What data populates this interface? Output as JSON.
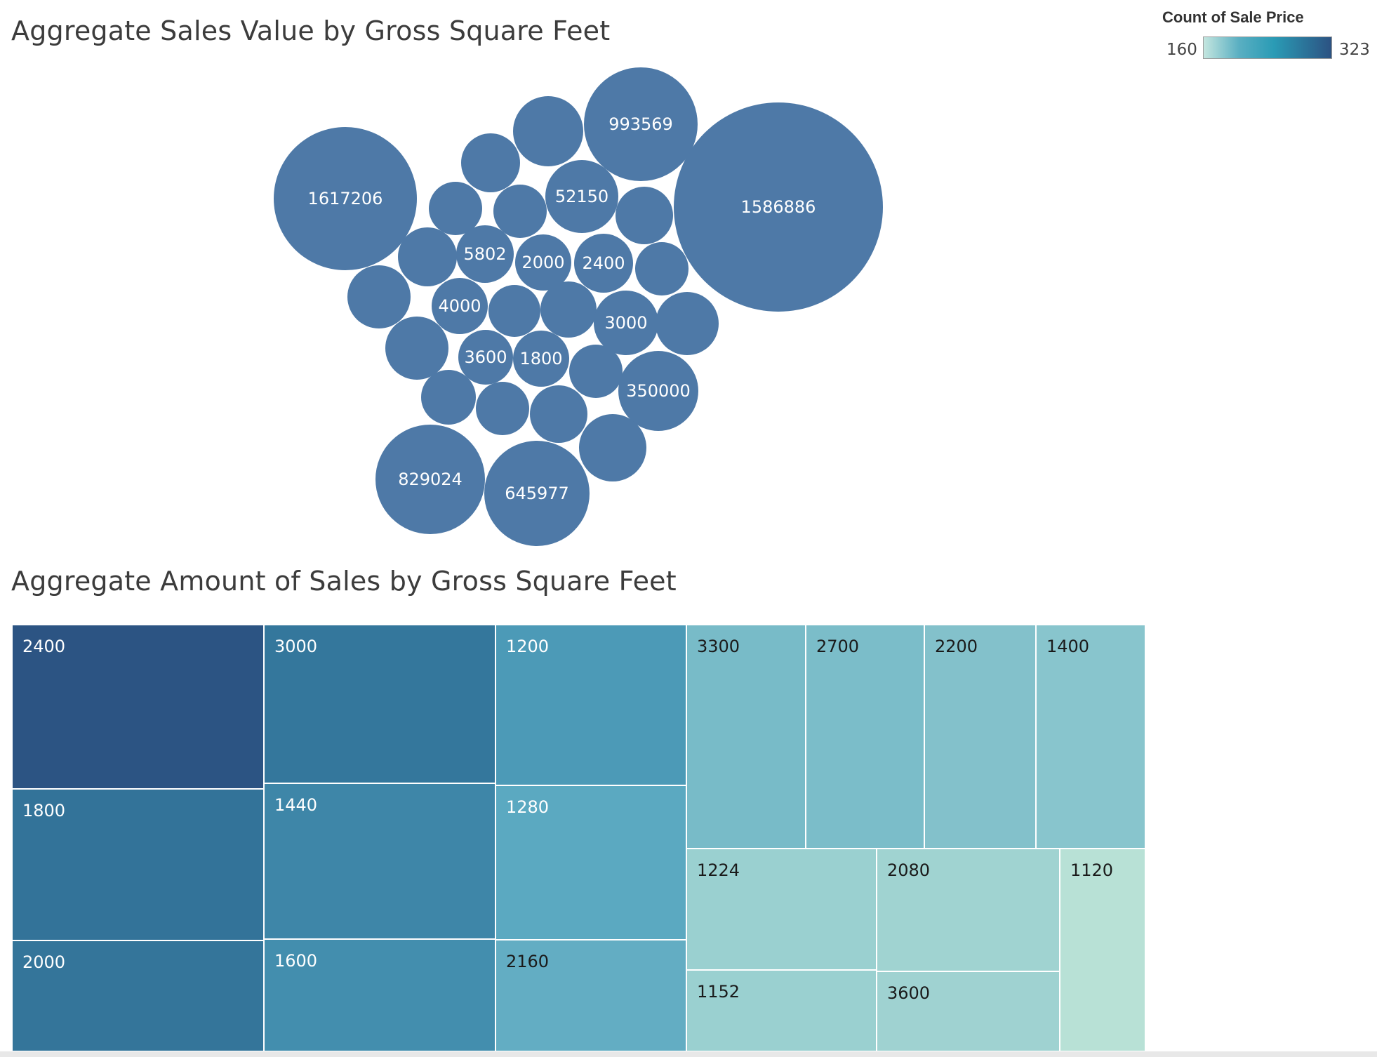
{
  "chart_data": [
    {
      "type": "bubble",
      "title": "Aggregate Sales Value by Gross Square Feet",
      "bubble_color": "#4e79a7",
      "bubbles": [
        {
          "label": "1586886",
          "value": 1586886
        },
        {
          "label": "1617206",
          "value": 1617206
        },
        {
          "label": "993569",
          "value": 993569
        },
        {
          "label": "829024",
          "value": 829024
        },
        {
          "label": "645977",
          "value": 645977
        },
        {
          "label": "350000",
          "value": 350000
        },
        {
          "label": "52150",
          "value": 52150
        },
        {
          "label": "",
          "value": null
        },
        {
          "label": "",
          "value": null
        },
        {
          "label": "",
          "value": null
        },
        {
          "label": "",
          "value": null
        },
        {
          "label": "",
          "value": null
        },
        {
          "label": "",
          "value": null
        },
        {
          "label": "2000",
          "value": 2000
        },
        {
          "label": "2400",
          "value": 2400
        },
        {
          "label": "5802",
          "value": 5802
        },
        {
          "label": "",
          "value": null
        },
        {
          "label": "",
          "value": null
        },
        {
          "label": "4000",
          "value": 4000
        },
        {
          "label": "",
          "value": null
        },
        {
          "label": "",
          "value": null
        },
        {
          "label": "3000",
          "value": 3000
        },
        {
          "label": "",
          "value": null
        },
        {
          "label": "",
          "value": null
        },
        {
          "label": "3600",
          "value": 3600
        },
        {
          "label": "1800",
          "value": 1800
        },
        {
          "label": "",
          "value": null
        },
        {
          "label": "",
          "value": null
        },
        {
          "label": "",
          "value": null
        },
        {
          "label": "",
          "value": null
        },
        {
          "label": "",
          "value": null
        }
      ]
    },
    {
      "type": "treemap",
      "title": "Aggregate Amount of Sales by Gross Square Feet",
      "color_legend": {
        "title": "Count of Sale Price",
        "min": 160,
        "max": 323
      },
      "cells": [
        {
          "label": "2400",
          "count": 323
        },
        {
          "label": "1800",
          "count": 290
        },
        {
          "label": "2000",
          "count": 288
        },
        {
          "label": "3000",
          "count": 285
        },
        {
          "label": "1440",
          "count": 270
        },
        {
          "label": "1600",
          "count": 262
        },
        {
          "label": "1200",
          "count": 250
        },
        {
          "label": "1280",
          "count": 235
        },
        {
          "label": "2160",
          "count": 230
        },
        {
          "label": "3300",
          "count": 215
        },
        {
          "label": "2700",
          "count": 213
        },
        {
          "label": "2200",
          "count": 208
        },
        {
          "label": "1400",
          "count": 204
        },
        {
          "label": "1224",
          "count": 190
        },
        {
          "label": "2080",
          "count": 185
        },
        {
          "label": "1120",
          "count": 165
        },
        {
          "label": "1152",
          "count": 190
        },
        {
          "label": "3600",
          "count": 186
        }
      ]
    }
  ]
}
